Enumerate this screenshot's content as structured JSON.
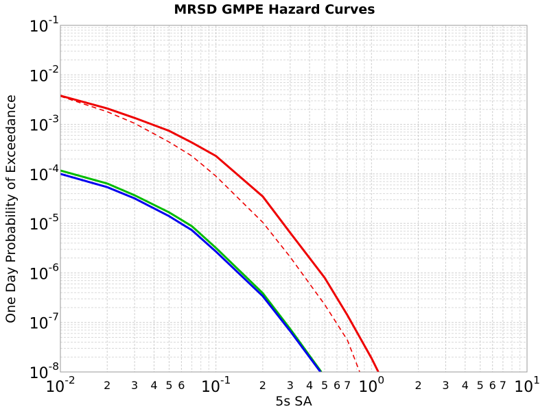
{
  "chart_data": {
    "type": "line",
    "title": "MRSD GMPE Hazard Curves",
    "xlabel": "5s SA",
    "ylabel": "One Day Probability of Exceedance",
    "xscale": "log",
    "yscale": "log",
    "grid": true,
    "xlim": [
      0.01,
      10
    ],
    "ylim": [
      1e-08,
      0.1
    ],
    "xticks": [
      {
        "value": 0.01,
        "label": "10",
        "sup": "-2"
      },
      {
        "value": 0.02,
        "label": "2"
      },
      {
        "value": 0.03,
        "label": "3"
      },
      {
        "value": 0.04,
        "label": "4"
      },
      {
        "value": 0.05,
        "label": "5"
      },
      {
        "value": 0.06,
        "label": "6"
      },
      {
        "value": 0.1,
        "label": "10",
        "sup": "-1"
      },
      {
        "value": 0.2,
        "label": "2"
      },
      {
        "value": 0.3,
        "label": "3"
      },
      {
        "value": 0.4,
        "label": "4"
      },
      {
        "value": 0.5,
        "label": "5"
      },
      {
        "value": 0.6,
        "label": "6"
      },
      {
        "value": 0.7,
        "label": "7"
      },
      {
        "value": 1,
        "label": "10",
        "sup": "0"
      },
      {
        "value": 2,
        "label": "2"
      },
      {
        "value": 3,
        "label": "3"
      },
      {
        "value": 4,
        "label": "4"
      },
      {
        "value": 5,
        "label": "5"
      },
      {
        "value": 6,
        "label": "6"
      },
      {
        "value": 7,
        "label": "7"
      },
      {
        "value": 10,
        "label": "10",
        "sup": "1"
      }
    ],
    "xminor": [
      0.07,
      0.08,
      0.09,
      0.8,
      0.9,
      8,
      9
    ],
    "yticks": [
      {
        "value": 1e-08,
        "label": "10",
        "sup": "-8"
      },
      {
        "value": 1e-07,
        "label": "10",
        "sup": "-7"
      },
      {
        "value": 1e-06,
        "label": "10",
        "sup": "-6"
      },
      {
        "value": 1e-05,
        "label": "10",
        "sup": "-5"
      },
      {
        "value": 0.0001,
        "label": "10",
        "sup": "-4"
      },
      {
        "value": 0.001,
        "label": "10",
        "sup": "-3"
      },
      {
        "value": 0.01,
        "label": "10",
        "sup": "-2"
      },
      {
        "value": 0.1,
        "label": "10",
        "sup": "-1"
      }
    ],
    "yminor": [
      2e-08,
      3e-08,
      4e-08,
      5e-08,
      6e-08,
      7e-08,
      8e-08,
      9e-08,
      2e-07,
      3e-07,
      4e-07,
      5e-07,
      6e-07,
      7e-07,
      8e-07,
      9e-07,
      2e-06,
      3e-06,
      4e-06,
      5e-06,
      6e-06,
      7e-06,
      8e-06,
      9e-06,
      2e-05,
      3e-05,
      4e-05,
      5e-05,
      6e-05,
      7e-05,
      8e-05,
      9e-05,
      0.0002,
      0.0003,
      0.0004,
      0.0005,
      0.0006,
      0.0007,
      0.0008,
      0.0009,
      0.002,
      0.003,
      0.004,
      0.005,
      0.006,
      0.007,
      0.008,
      0.009,
      0.02,
      0.03,
      0.04,
      0.05,
      0.06,
      0.07,
      0.08,
      0.09
    ],
    "series": [
      {
        "color": "#ee0000",
        "dash": false,
        "x": [
          0.01,
          0.02,
          0.03,
          0.05,
          0.07,
          0.1,
          0.2,
          0.3,
          0.5,
          0.7,
          1,
          1.107
        ],
        "values": [
          0.0038,
          0.0021,
          0.00135,
          0.00074,
          0.00043,
          0.00023,
          3.5e-05,
          6.5e-06,
          8e-07,
          1.4e-07,
          1.9e-08,
          1e-08
        ]
      },
      {
        "color": "#ee0000",
        "dash": true,
        "x": [
          0.01,
          0.02,
          0.03,
          0.05,
          0.07,
          0.1,
          0.2,
          0.3,
          0.5,
          0.7,
          0.84
        ],
        "values": [
          0.0037,
          0.0018,
          0.00105,
          0.00044,
          0.00023,
          9e-05,
          1.05e-05,
          2.1e-06,
          2.3e-07,
          4.4e-08,
          1e-08
        ]
      },
      {
        "color": "#00bb00",
        "dash": false,
        "x": [
          0.01,
          0.02,
          0.03,
          0.05,
          0.07,
          0.1,
          0.2,
          0.3,
          0.476
        ],
        "values": [
          0.000117,
          6.4e-05,
          3.7e-05,
          1.67e-05,
          8.8e-06,
          3.2e-06,
          3.9e-07,
          7.4e-08,
          1e-08
        ]
      },
      {
        "color": "#0000ee",
        "dash": false,
        "x": [
          0.01,
          0.02,
          0.03,
          0.05,
          0.07,
          0.1,
          0.2,
          0.3,
          0.47
        ],
        "values": [
          0.0001,
          5.4e-05,
          3.2e-05,
          1.4e-05,
          7.3e-06,
          2.7e-06,
          3.4e-07,
          6.7e-08,
          1e-08
        ]
      }
    ]
  }
}
